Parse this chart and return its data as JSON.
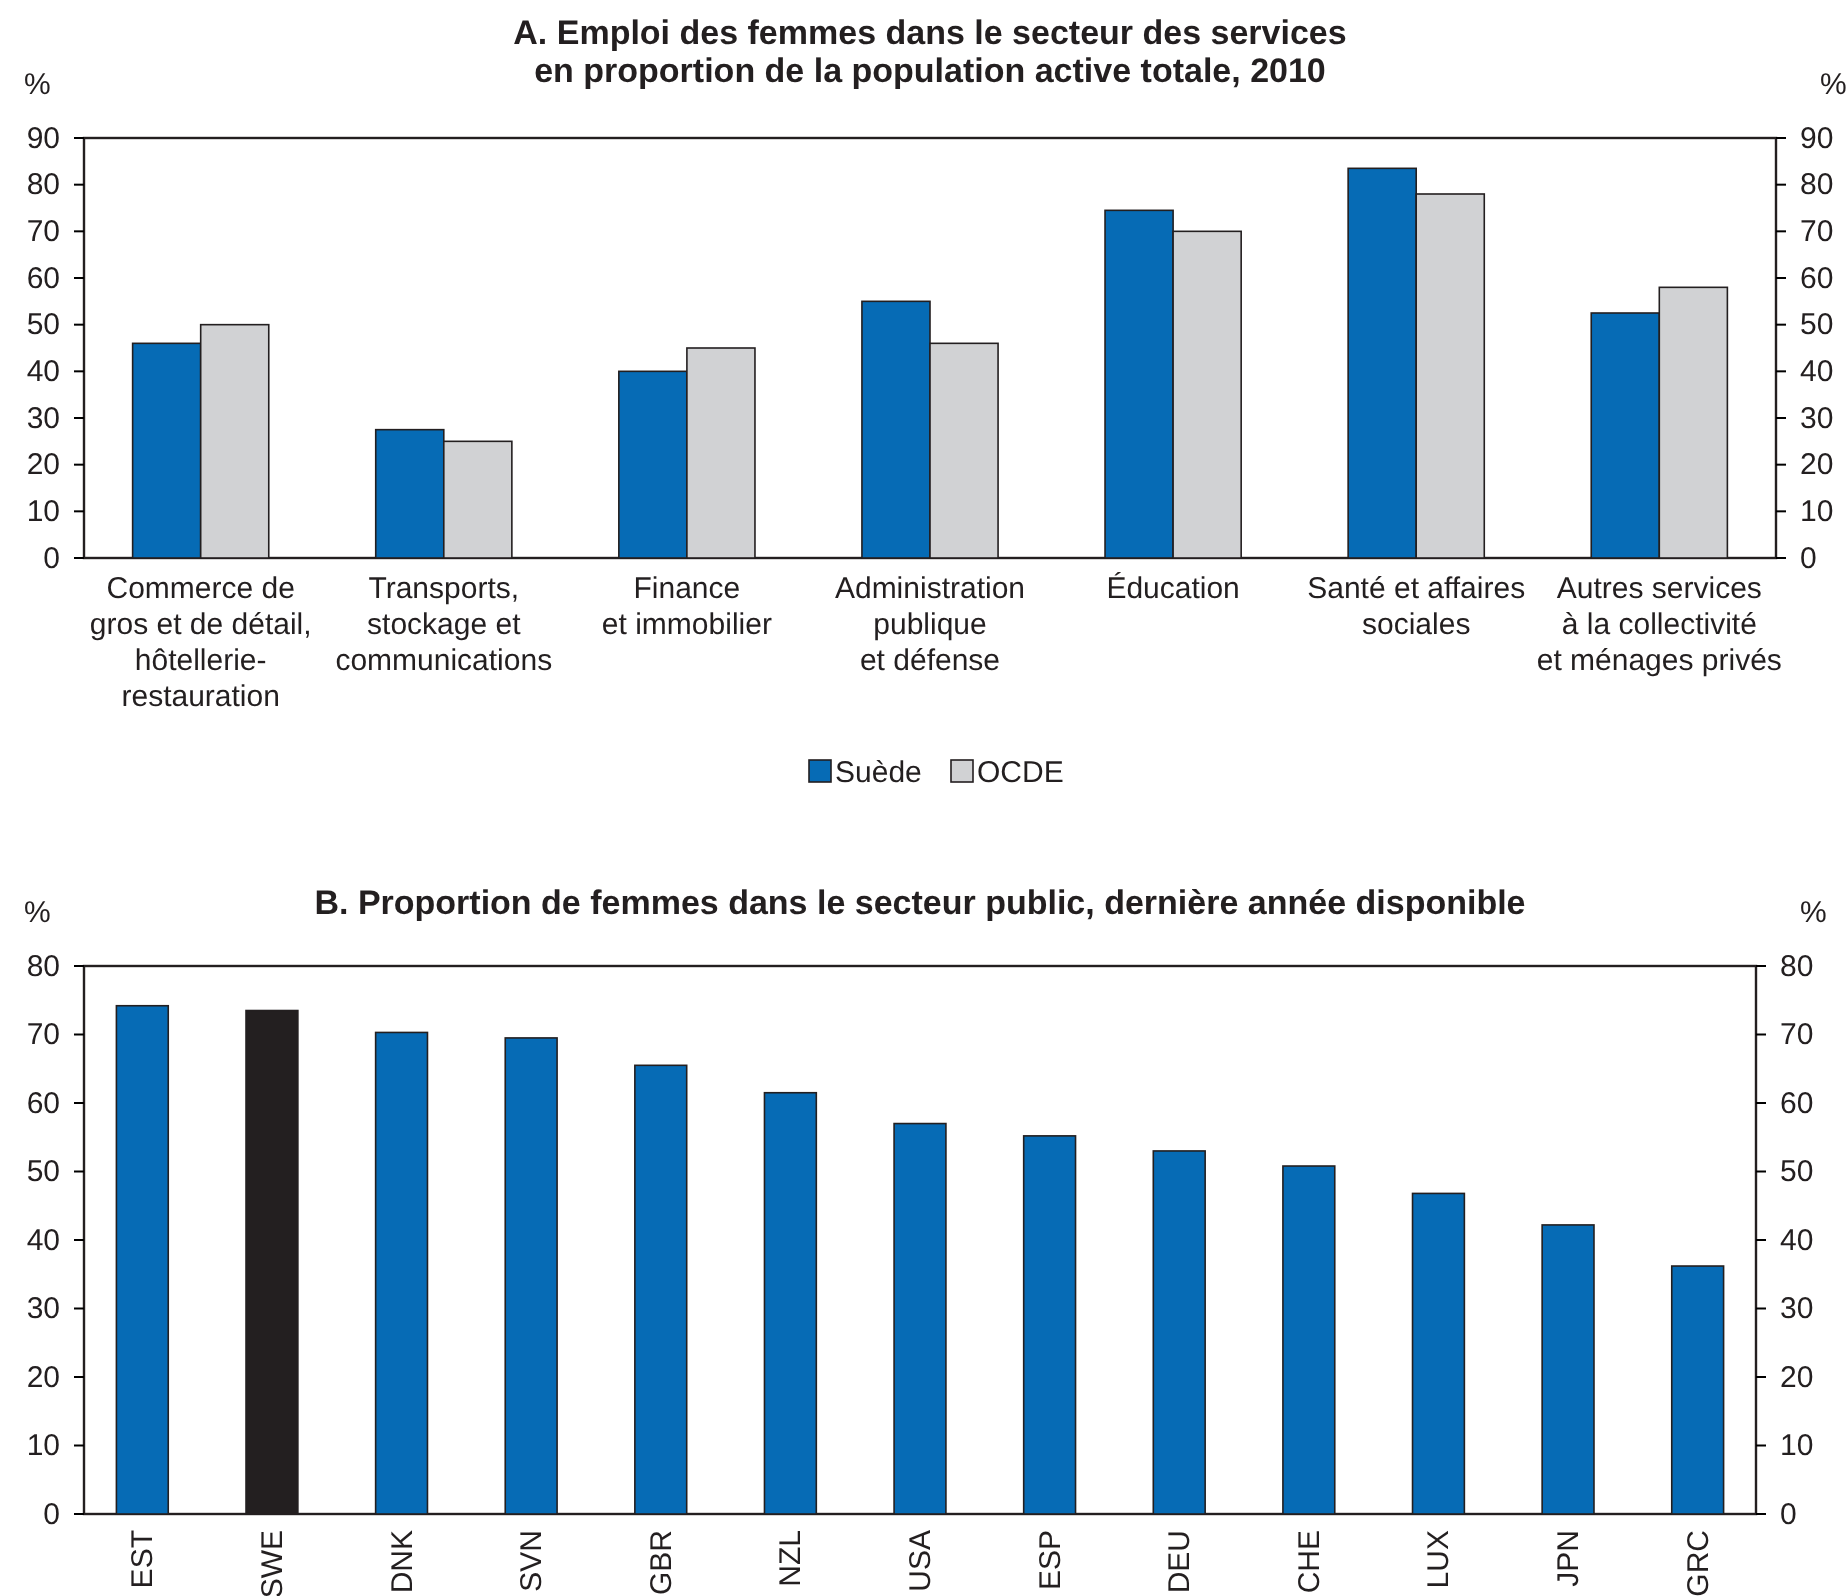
{
  "chart_data": [
    {
      "type": "bar",
      "title": "A. Emploi des femmes dans le secteur des services\nen proportion de la population active totale, 2010",
      "ylabel": "%",
      "y2label": "%",
      "categories": [
        "Commerce de\ngros et de détail,\nhôtellerie-\nrestauration",
        "Transports,\nstockage et\ncommunications",
        "Finance\net immobilier",
        "Administration\npublique\net défense",
        "Éducation",
        "Santé et affaires\nsociales",
        "Autres services\nà la collectivité\net ménages privés"
      ],
      "series": [
        {
          "name": "Suède",
          "color": "#066bb5",
          "values": [
            46,
            27.5,
            40,
            55,
            74.5,
            83.5,
            52.5
          ]
        },
        {
          "name": "OCDE",
          "color": "#d1d2d4",
          "values": [
            50,
            25,
            45,
            46,
            70,
            78,
            58
          ]
        }
      ],
      "ylim": [
        0,
        90
      ],
      "yticks": [
        0,
        10,
        20,
        30,
        40,
        50,
        60,
        70,
        80,
        90
      ],
      "y2lim": [
        0,
        90
      ],
      "y2ticks": [
        0,
        10,
        20,
        30,
        40,
        50,
        60,
        70,
        80,
        90
      ],
      "legend": "bottom",
      "grid": false
    },
    {
      "type": "bar",
      "title": "B. Proportion de femmes dans le secteur public, dernière année disponible",
      "ylabel": "%",
      "y2label": "%",
      "categories": [
        "EST",
        "SWE",
        "DNK",
        "SVN",
        "GBR",
        "NZL",
        "USA",
        "ESP",
        "DEU",
        "CHE",
        "LUX",
        "JPN",
        "GRC"
      ],
      "values": [
        74.2,
        73.5,
        70.3,
        69.5,
        65.5,
        61.5,
        57,
        55.2,
        53,
        50.8,
        46.8,
        42.2,
        36.2
      ],
      "colors": [
        "#066bb5",
        "#231f20",
        "#066bb5",
        "#066bb5",
        "#066bb5",
        "#066bb5",
        "#066bb5",
        "#066bb5",
        "#066bb5",
        "#066bb5",
        "#066bb5",
        "#066bb5",
        "#066bb5"
      ],
      "ylim": [
        0,
        80
      ],
      "yticks": [
        0,
        10,
        20,
        30,
        40,
        50,
        60,
        70,
        80
      ],
      "y2lim": [
        0,
        80
      ],
      "y2ticks": [
        0,
        10,
        20,
        30,
        40,
        50,
        60,
        70,
        80
      ],
      "grid": false
    }
  ]
}
